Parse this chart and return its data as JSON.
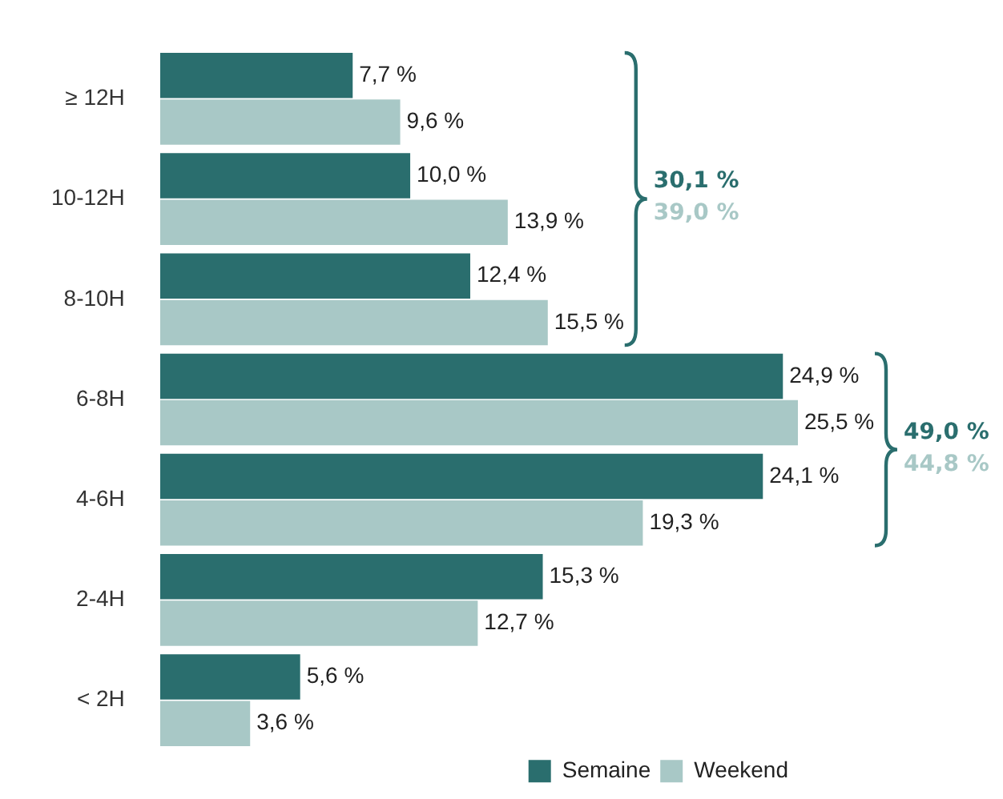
{
  "chart_data": {
    "type": "bar",
    "orientation": "horizontal",
    "categories": [
      "≥ 12H",
      "10-12H",
      "8-10H",
      "6-8H",
      "4-6H",
      "2-4H",
      "< 2H"
    ],
    "series": [
      {
        "name": "Semaine",
        "color": "#2a6e6e",
        "values": [
          7.7,
          10.0,
          12.4,
          24.9,
          24.1,
          15.3,
          5.6
        ],
        "value_labels": [
          "7,7 %",
          "10,0 %",
          "12,4 %",
          "24,9 %",
          "24,1 %",
          "15,3 %",
          "5,6 %"
        ]
      },
      {
        "name": "Weekend",
        "color": "#a8c8c6",
        "values": [
          9.6,
          13.9,
          15.5,
          25.5,
          19.3,
          12.7,
          3.6
        ],
        "value_labels": [
          "9,6 %",
          "13,9 %",
          "15,5 %",
          "25,5 %",
          "19,3 %",
          "12,7 %",
          "3,6 %"
        ]
      }
    ],
    "annotations": [
      "30,1 %",
      "39,0 %",
      "49,0 %",
      "44,8 %"
    ],
    "legend": "bottom right",
    "grid": false,
    "tick_labels": "y"
  }
}
